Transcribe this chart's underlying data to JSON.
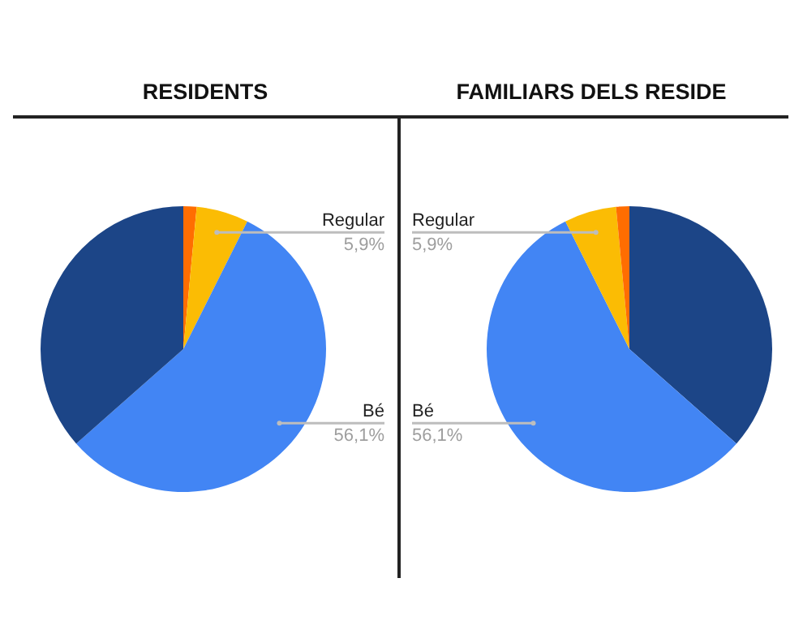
{
  "chart_data": [
    {
      "type": "pie",
      "title": "RESIDENTS",
      "categories": [
        null,
        "Regular",
        "Bé",
        null
      ],
      "values": [
        1.5,
        5.9,
        56.1,
        36.5
      ],
      "colors": [
        "#ff6d01",
        "#fbbc04",
        "#4285f4",
        "#1c4587"
      ],
      "value_labels": [
        null,
        "5,9%",
        "56,1%",
        null
      ]
    },
    {
      "type": "pie",
      "title": "FAMILIARS DELS RESIDE",
      "categories": [
        null,
        "Bé",
        "Regular",
        null
      ],
      "values": [
        36.5,
        56.1,
        5.9,
        1.5
      ],
      "colors": [
        "#1c4587",
        "#4285f4",
        "#fbbc04",
        "#ff6d01"
      ],
      "value_labels": [
        null,
        "56,1%",
        "5,9%",
        null
      ]
    }
  ]
}
